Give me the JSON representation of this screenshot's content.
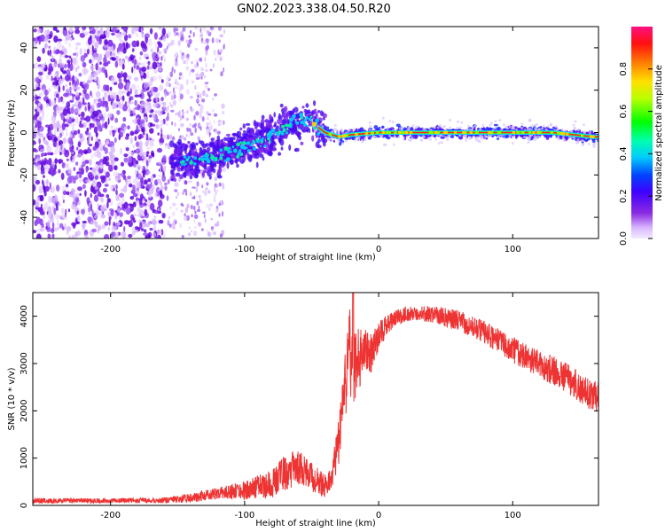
{
  "title": "GN02.2023.338.04.50.R20",
  "chart_data": [
    {
      "type": "heatmap",
      "name": "spectrogram",
      "xlabel": "Height of straight line (km)",
      "ylabel": "Frequency (Hz)",
      "xlim": [
        -258,
        164
      ],
      "ylim": [
        -50,
        50
      ],
      "xticks": [
        -200,
        -100,
        0,
        100
      ],
      "yticks": [
        -40,
        -20,
        0,
        20,
        40
      ],
      "colorbar": {
        "label": "Normalized spectral amplitude",
        "range": [
          0,
          1
        ],
        "ticks": [
          "0.0",
          "0.2",
          "0.4",
          "0.6",
          "0.8"
        ],
        "tick_values": [
          0,
          0.2,
          0.4,
          0.6,
          0.8
        ]
      },
      "features": {
        "noise_band_x": [
          -258,
          -120
        ],
        "signal_start_x": -155,
        "trace_points": [
          [
            -155,
            -14
          ],
          [
            -130,
            -12
          ],
          [
            -110,
            -9
          ],
          [
            -90,
            -4
          ],
          [
            -70,
            2
          ],
          [
            -55,
            6
          ],
          [
            -48,
            4
          ],
          [
            -40,
            0
          ],
          [
            -30,
            -2
          ],
          [
            -20,
            -1
          ],
          [
            0,
            0
          ],
          [
            50,
            0
          ],
          [
            100,
            0
          ],
          [
            130,
            0
          ],
          [
            160,
            -2
          ]
        ]
      }
    },
    {
      "type": "line",
      "name": "snr",
      "xlabel": "Height of straight line (km)",
      "ylabel": "SNR (10 * v/v)",
      "xlim": [
        -258,
        164
      ],
      "ylim": [
        0,
        4500
      ],
      "xticks": [
        -200,
        -100,
        0,
        100
      ],
      "yticks": [
        0,
        1000,
        2000,
        3000,
        4000
      ],
      "color": "#ee3333",
      "envelope": {
        "x": [
          -258,
          -200,
          -160,
          -140,
          -120,
          -100,
          -80,
          -70,
          -60,
          -50,
          -40,
          -35,
          -30,
          -25,
          -22,
          -20,
          -18,
          -15,
          -10,
          -5,
          0,
          10,
          20,
          30,
          40,
          60,
          80,
          100,
          120,
          140,
          160,
          164
        ],
        "mean": [
          100,
          100,
          110,
          160,
          260,
          320,
          450,
          700,
          800,
          600,
          400,
          600,
          1300,
          2500,
          3300,
          3100,
          2900,
          3050,
          3300,
          3200,
          3600,
          3900,
          4050,
          4050,
          4050,
          3900,
          3650,
          3300,
          3000,
          2700,
          2300,
          2300
        ],
        "amplitude": [
          60,
          50,
          60,
          100,
          120,
          200,
          300,
          380,
          380,
          300,
          250,
          250,
          500,
          700,
          900,
          1000,
          800,
          700,
          450,
          400,
          300,
          200,
          160,
          160,
          180,
          220,
          250,
          280,
          300,
          320,
          330,
          330
        ]
      },
      "spike": {
        "x": -19,
        "y": 4500
      }
    }
  ]
}
